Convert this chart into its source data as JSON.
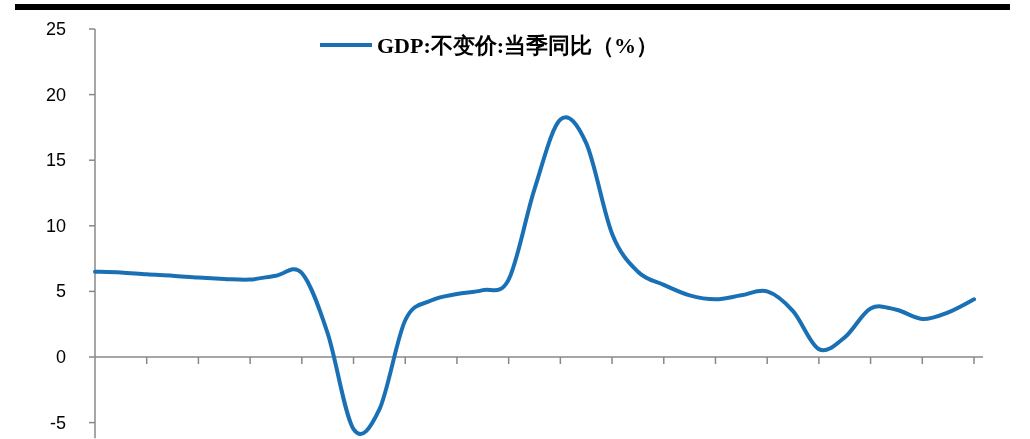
{
  "chart_data": {
    "type": "line",
    "categories": [
      null,
      null,
      null,
      null,
      null,
      null,
      null,
      null,
      null,
      null,
      null,
      null,
      null,
      null,
      null,
      null,
      null,
      null,
      null,
      null,
      null,
      null,
      null,
      null,
      null,
      null,
      null,
      null,
      null,
      null,
      null,
      null,
      null,
      null,
      null
    ],
    "series": [
      {
        "name": "GDP:不变价:当季同比（%）",
        "color": "#1a70b4",
        "values": [
          6.5,
          6.45,
          6.3,
          6.2,
          6.05,
          5.95,
          5.9,
          6.2,
          6.4,
          1.8,
          -5.5,
          -4.0,
          2.8,
          4.3,
          4.8,
          5.1,
          5.9,
          12.8,
          18.1,
          16.3,
          9.4,
          6.5,
          5.5,
          4.7,
          4.4,
          4.7,
          5.0,
          3.5,
          0.6,
          1.5,
          3.7,
          3.6,
          2.9,
          3.4,
          4.4
        ]
      }
    ],
    "ylim": [
      -6.2,
      25
    ],
    "yticks": [
      -5,
      0,
      5,
      10,
      15,
      20,
      25
    ],
    "legend": "top",
    "marker": "none",
    "line_style": "solid"
  }
}
